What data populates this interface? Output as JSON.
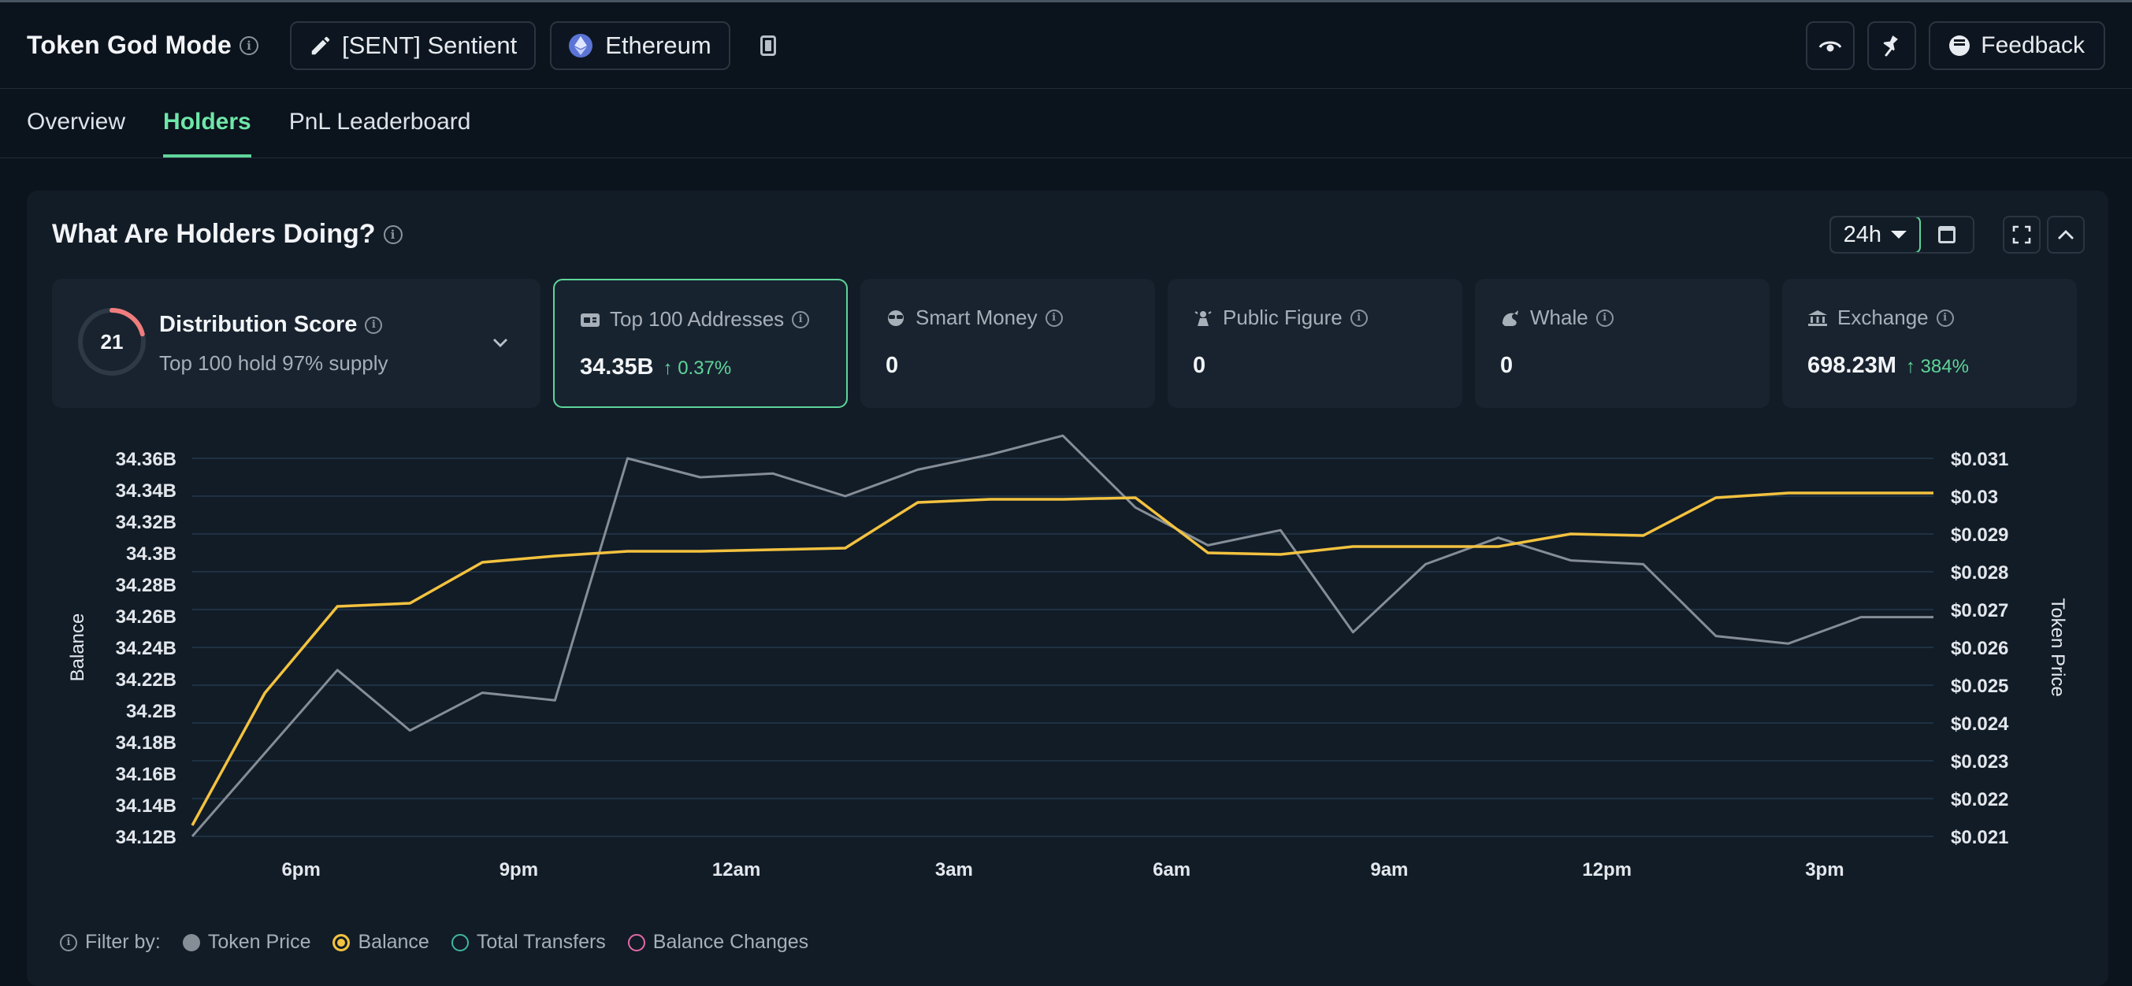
{
  "header": {
    "title": "Token God Mode",
    "token_label": "[SENT] Sentient",
    "chain_label": "Ethereum",
    "feedback_label": "Feedback"
  },
  "tabs": [
    {
      "label": "Overview",
      "active": false
    },
    {
      "label": "Holders",
      "active": true
    },
    {
      "label": "PnL Leaderboard",
      "active": false
    }
  ],
  "section": {
    "title": "What Are Holders Doing?",
    "time_range": "24h"
  },
  "distribution": {
    "score": "21",
    "title": "Distribution Score",
    "subtitle": "Top 100 hold 97% supply",
    "score_fraction": 0.21
  },
  "metrics": [
    {
      "label": "Top 100 Addresses",
      "value": "34.35B",
      "change": "0.37%",
      "selected": true,
      "icon": "wallet-icon"
    },
    {
      "label": "Smart Money",
      "value": "0",
      "change": "",
      "selected": false,
      "icon": "smart-money-icon"
    },
    {
      "label": "Public Figure",
      "value": "0",
      "change": "",
      "selected": false,
      "icon": "public-figure-icon"
    },
    {
      "label": "Whale",
      "value": "0",
      "change": "",
      "selected": false,
      "icon": "whale-icon"
    },
    {
      "label": "Exchange",
      "value": "698.23M",
      "change": "384%",
      "selected": false,
      "icon": "exchange-icon"
    }
  ],
  "chart_data": {
    "type": "line",
    "xlabel": "",
    "ylabel": "Balance",
    "y2label": "Token Price",
    "x_ticks": [
      "6pm",
      "9pm",
      "12am",
      "3am",
      "6am",
      "9am",
      "12pm",
      "3pm"
    ],
    "y_ticks": [
      "34.36B",
      "34.34B",
      "34.32B",
      "34.3B",
      "34.28B",
      "34.26B",
      "34.24B",
      "34.22B",
      "34.2B",
      "34.18B",
      "34.16B",
      "34.14B",
      "34.12B"
    ],
    "y2_ticks": [
      "$0.031",
      "$0.03",
      "$0.029",
      "$0.028",
      "$0.027",
      "$0.026",
      "$0.025",
      "$0.024",
      "$0.023",
      "$0.022",
      "$0.021"
    ],
    "ylim": [
      34.12,
      34.36
    ],
    "y2lim": [
      0.021,
      0.031
    ],
    "x_hours": [
      16.5,
      17.5,
      18.5,
      19.5,
      20.5,
      21.5,
      22.5,
      23.5,
      24.5,
      25.5,
      26.5,
      27.5,
      28.5,
      29.5,
      30.5,
      31.5,
      32.5,
      33.5,
      34.5,
      35.5,
      36.5,
      37.5,
      38.5,
      39.5,
      40.5
    ],
    "x_tick_hours": [
      18,
      21,
      24,
      27,
      30,
      33,
      36,
      39
    ],
    "xlim": [
      16.5,
      40.5
    ],
    "grid": true,
    "legend_position": "bottom-left",
    "series": [
      {
        "name": "Balance",
        "axis": "left",
        "color": "#f3c23f",
        "values": [
          34.127,
          34.211,
          34.266,
          34.268,
          34.294,
          34.298,
          34.301,
          34.301,
          34.302,
          34.303,
          34.332,
          34.334,
          34.334,
          34.335,
          34.3,
          34.299,
          34.304,
          34.304,
          34.304,
          34.312,
          34.311,
          34.335,
          34.338,
          34.338,
          34.338
        ]
      },
      {
        "name": "Token Price",
        "axis": "right",
        "color": "#858d97",
        "values": [
          0.021,
          0.0232,
          0.0254,
          0.0238,
          0.0248,
          0.0246,
          0.031,
          0.0305,
          0.0306,
          0.03,
          0.0307,
          0.0311,
          0.0316,
          0.0297,
          0.0287,
          0.0291,
          0.0264,
          0.0282,
          0.0289,
          0.0283,
          0.0282,
          0.0263,
          0.0261,
          0.0268,
          0.0268
        ]
      }
    ]
  },
  "legend": {
    "prefix": "Filter by:",
    "items": [
      {
        "label": "Token Price",
        "color": "#858d97",
        "filled": true
      },
      {
        "label": "Balance",
        "color": "#f3c23f",
        "filled": true
      },
      {
        "label": "Total Transfers",
        "color": "#3fb6a0",
        "filled": false
      },
      {
        "label": "Balance Changes",
        "color": "#e36aa6",
        "filled": false
      }
    ]
  }
}
